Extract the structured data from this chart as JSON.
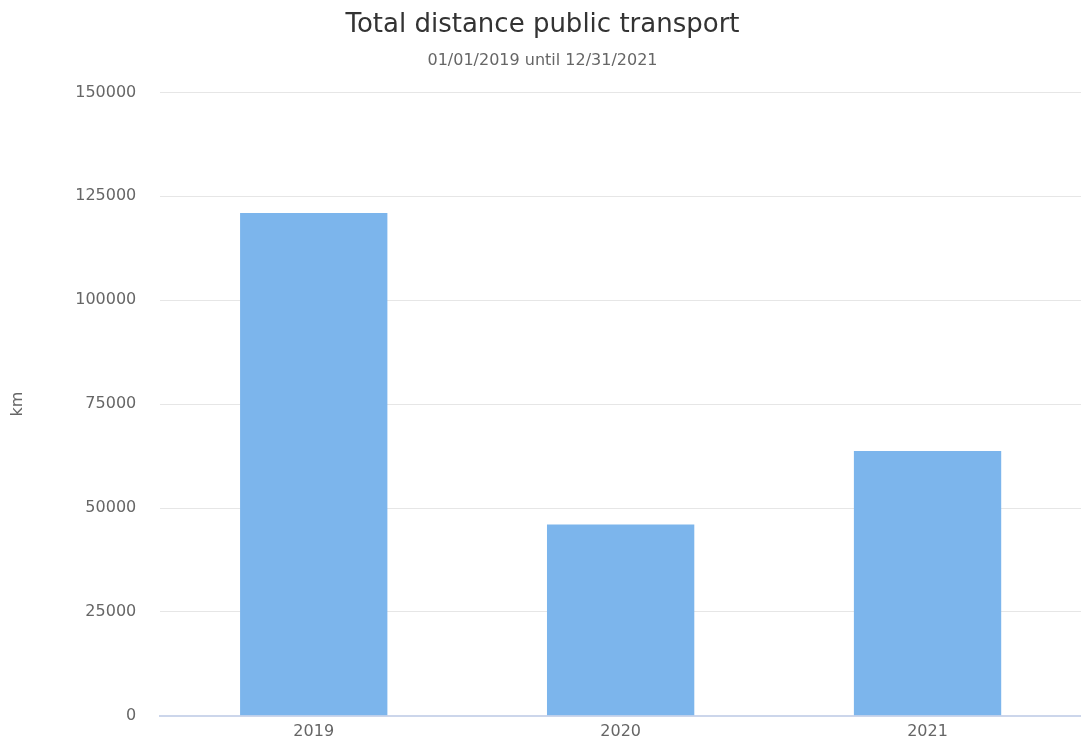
{
  "chart_data": {
    "type": "bar",
    "title": "Total distance public transport",
    "subtitle": "01/01/2019 until 12/31/2021",
    "ylabel": "km",
    "categories": [
      "2019",
      "2020",
      "2021"
    ],
    "values": [
      121000,
      46000,
      63700
    ],
    "color": "#7cb5ec",
    "ylim": [
      0,
      150000
    ],
    "yticks": [
      0,
      25000,
      50000,
      75000,
      100000,
      125000,
      150000
    ],
    "grid": "y",
    "legend": false
  }
}
